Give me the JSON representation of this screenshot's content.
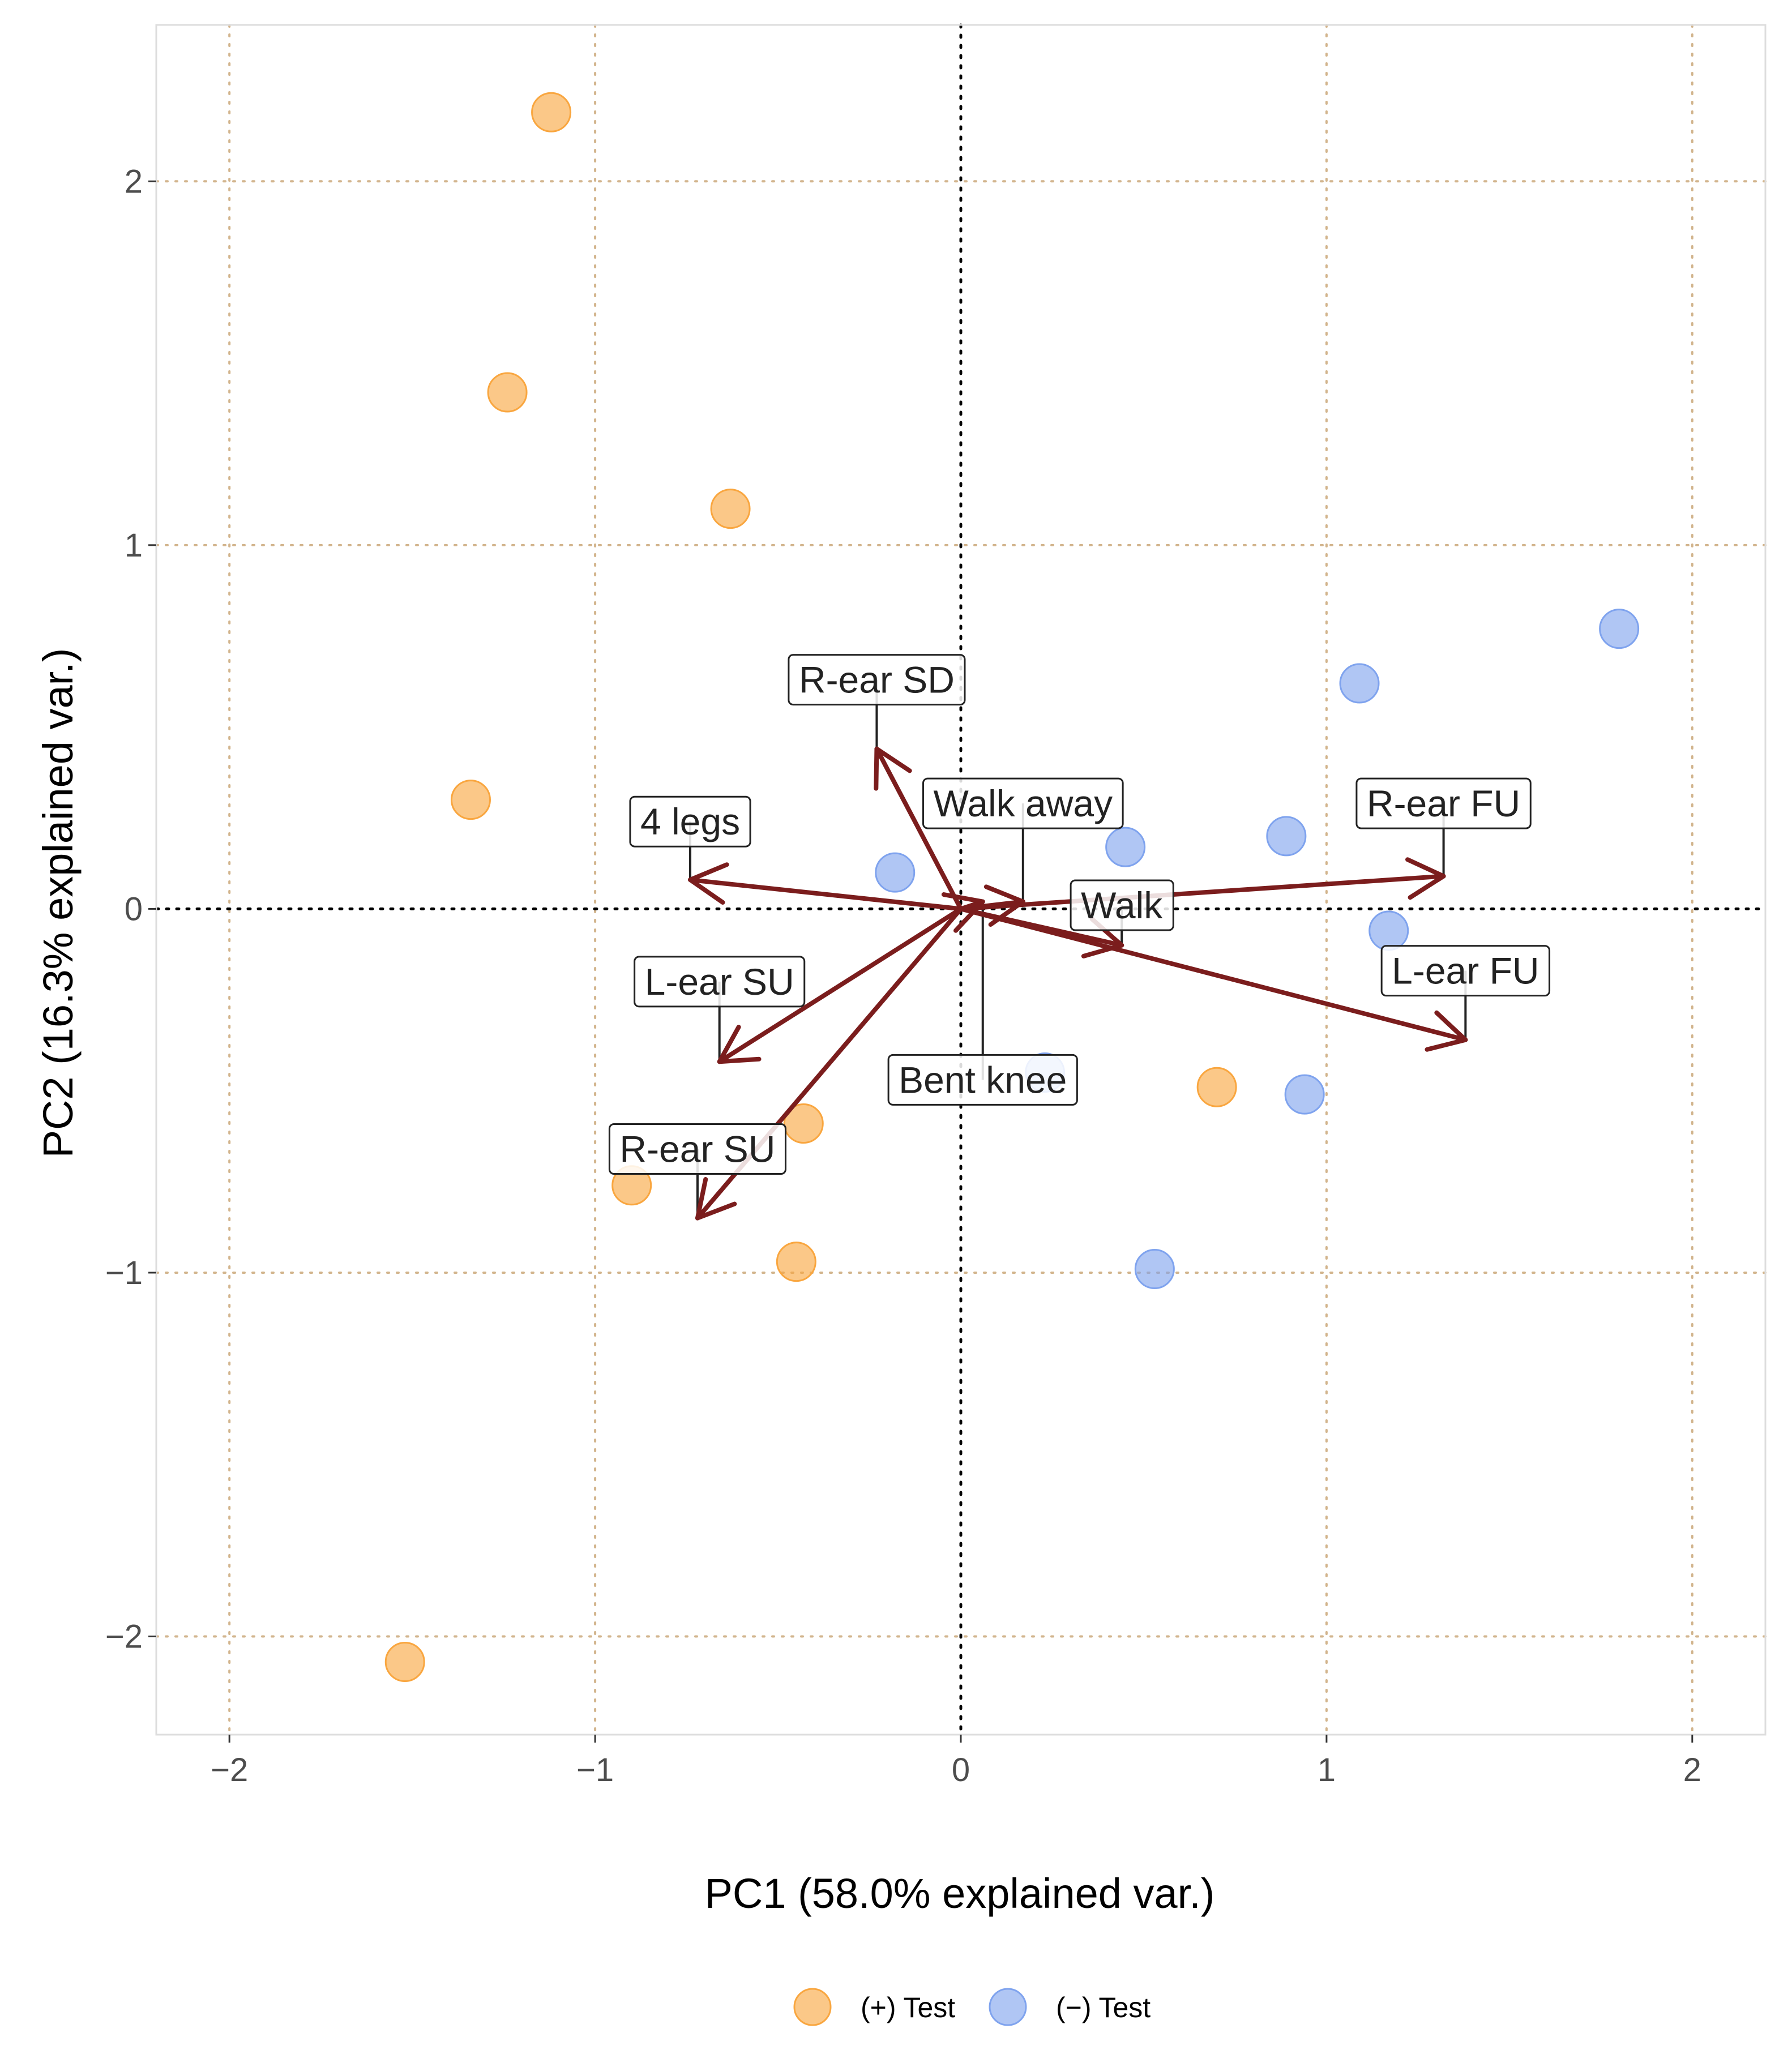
{
  "chart_data": {
    "type": "scatter",
    "subtype": "pca-biplot",
    "xlabel": "PC1 (58.0% explained var.)",
    "ylabel": "PC2 (16.3% explained var.)",
    "xlim": [
      -2.2,
      2.2
    ],
    "ylim": [
      -2.27,
      2.43
    ],
    "xticks": [
      -2,
      -1,
      0,
      1,
      2
    ],
    "yticks": [
      -2,
      -1,
      0,
      1,
      2
    ],
    "xtick_labels": [
      "−2",
      "−1",
      "0",
      "1",
      "2"
    ],
    "ytick_labels": [
      "−2",
      "−1",
      "0",
      "1",
      "2"
    ],
    "grid": true,
    "series": [
      {
        "name": "(+) Test",
        "color": "#F9A63F",
        "points": [
          {
            "x": -1.12,
            "y": 2.19
          },
          {
            "x": -1.24,
            "y": 1.42
          },
          {
            "x": -0.63,
            "y": 1.1
          },
          {
            "x": -1.34,
            "y": 0.3
          },
          {
            "x": -0.43,
            "y": -0.59
          },
          {
            "x": -0.9,
            "y": -0.76
          },
          {
            "x": -0.45,
            "y": -0.97
          },
          {
            "x": 0.7,
            "y": -0.49
          },
          {
            "x": -1.52,
            "y": -2.07
          }
        ]
      },
      {
        "name": "(−) Test",
        "color": "#7FA3EE",
        "points": [
          {
            "x": 1.8,
            "y": 0.77
          },
          {
            "x": 1.09,
            "y": 0.62
          },
          {
            "x": 0.89,
            "y": 0.2
          },
          {
            "x": 0.45,
            "y": 0.17
          },
          {
            "x": -0.18,
            "y": 0.1
          },
          {
            "x": 1.17,
            "y": -0.06
          },
          {
            "x": 0.23,
            "y": -0.45
          },
          {
            "x": 0.94,
            "y": -0.51
          },
          {
            "x": 0.53,
            "y": -0.99
          }
        ]
      }
    ],
    "loadings": [
      {
        "name": "R-ear SD",
        "x": -0.23,
        "y": 0.44,
        "label_x": -0.23,
        "label_y": 0.63
      },
      {
        "name": "Walk away",
        "x": 0.17,
        "y": 0.02,
        "label_x": 0.17,
        "label_y": 0.29
      },
      {
        "name": "4 legs",
        "x": -0.74,
        "y": 0.08,
        "label_x": -0.74,
        "label_y": 0.24
      },
      {
        "name": "R-ear FU",
        "x": 1.32,
        "y": 0.09,
        "label_x": 1.32,
        "label_y": 0.29
      },
      {
        "name": "Walk",
        "x": 0.44,
        "y": -0.1,
        "label_x": 0.44,
        "label_y": 0.01
      },
      {
        "name": "L-ear FU",
        "x": 1.38,
        "y": -0.36,
        "label_x": 1.38,
        "label_y": -0.17
      },
      {
        "name": "L-ear SU",
        "x": -0.66,
        "y": -0.42,
        "label_x": -0.66,
        "label_y": -0.2
      },
      {
        "name": "Bent knee",
        "x": 0.06,
        "y": 0.02,
        "label_x": 0.06,
        "label_y": -0.47
      },
      {
        "name": "R-ear SU",
        "x": -0.72,
        "y": -0.85,
        "label_x": -0.72,
        "label_y": -0.66
      }
    ],
    "arrow_color": "#7B1D1D",
    "grid_color": "#D2B48C",
    "legend": {
      "position": "bottom",
      "entries": [
        "(+) Test",
        "(−) Test"
      ]
    }
  }
}
